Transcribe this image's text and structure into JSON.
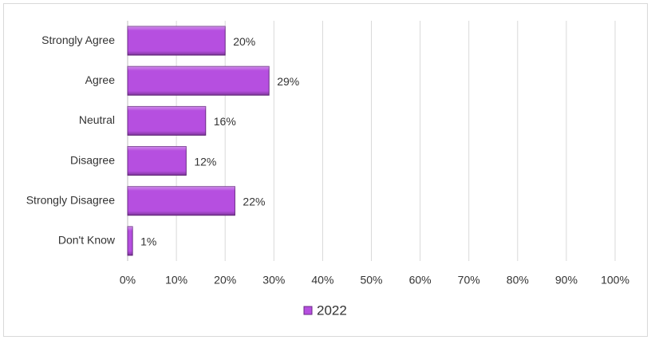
{
  "chart_data": {
    "type": "bar",
    "orientation": "horizontal",
    "categories": [
      "Strongly Agree",
      "Agree",
      "Neutral",
      "Disagree",
      "Strongly Disagree",
      "Don't Know"
    ],
    "series": [
      {
        "name": "2022",
        "color": "#b64fe0",
        "values": [
          20,
          29,
          16,
          12,
          22,
          1
        ],
        "value_labels": [
          "20%",
          "29%",
          "16%",
          "12%",
          "22%",
          "1%"
        ]
      }
    ],
    "xlim": [
      0,
      100
    ],
    "xticks": [
      {
        "value": 0,
        "label": "0%"
      },
      {
        "value": 10,
        "label": "10%"
      },
      {
        "value": 20,
        "label": "20%"
      },
      {
        "value": 30,
        "label": "30%"
      },
      {
        "value": 40,
        "label": "40%"
      },
      {
        "value": 50,
        "label": "50%"
      },
      {
        "value": 60,
        "label": "60%"
      },
      {
        "value": 70,
        "label": "70%"
      },
      {
        "value": 80,
        "label": "80%"
      },
      {
        "value": 90,
        "label": "90%"
      },
      {
        "value": 100,
        "label": "100%"
      }
    ],
    "grid": true,
    "legend": "bottom"
  }
}
